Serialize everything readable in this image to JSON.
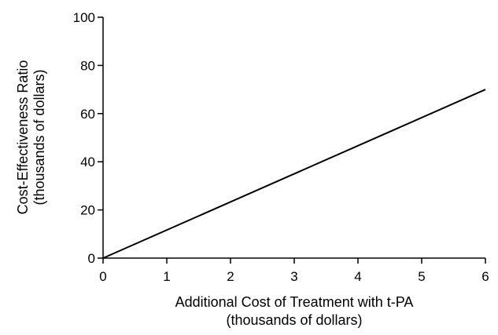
{
  "chart_data": {
    "type": "line",
    "title": "",
    "xlabel": [
      "Additional Cost of Treatment with t-PA",
      "(thousands of dollars)"
    ],
    "ylabel": [
      "Cost-Effectiveness Ratio",
      "(thousands of dollars)"
    ],
    "xlim": [
      0,
      6
    ],
    "ylim": [
      0,
      100
    ],
    "x_ticks": [
      "0",
      "1",
      "2",
      "3",
      "4",
      "5",
      "6"
    ],
    "y_ticks": [
      "0",
      "20",
      "40",
      "60",
      "80",
      "100"
    ],
    "grid": false,
    "legend": "none",
    "series": [
      {
        "x": [
          0,
          6
        ],
        "y": [
          0,
          70
        ]
      }
    ]
  }
}
